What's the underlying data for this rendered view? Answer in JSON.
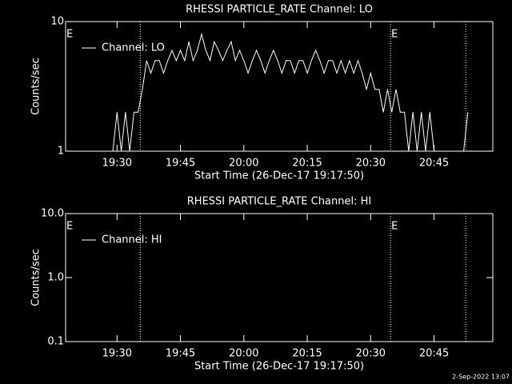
{
  "chart_data": [
    {
      "type": "line",
      "title": "RHESSI PARTICLE_RATE Channel: LO",
      "xlabel": "Start Time (26-Dec-17 19:17:50)",
      "ylabel": "Counts/sec",
      "log_y": true,
      "ylim": [
        1,
        10
      ],
      "yticks": [
        1,
        10
      ],
      "xlim": [
        1157.83,
        1258.9
      ],
      "xticks": [
        {
          "value": 1170,
          "label": "19:30"
        },
        {
          "value": 1185,
          "label": "19:45"
        },
        {
          "value": 1200,
          "label": "20:00"
        },
        {
          "value": 1215,
          "label": "20:15"
        },
        {
          "value": 1230,
          "label": "20:30"
        },
        {
          "value": 1245,
          "label": "20:45"
        }
      ],
      "legend": "upper left",
      "markers": [
        1175.5,
        1234.7,
        1252.5
      ],
      "annotations": [
        {
          "text": "E",
          "x": 1157.83
        },
        {
          "text": "E",
          "x": 1234.7
        }
      ],
      "x": [
        1169,
        1170,
        1171,
        1172,
        1173,
        1174,
        1175,
        1176,
        1177,
        1178,
        1179,
        1180,
        1181,
        1182,
        1183,
        1184,
        1185,
        1186,
        1187,
        1188,
        1189,
        1190,
        1191,
        1192,
        1193,
        1194,
        1195,
        1196,
        1197,
        1198,
        1199,
        1200,
        1201,
        1202,
        1203,
        1204,
        1205,
        1206,
        1207,
        1208,
        1209,
        1210,
        1211,
        1212,
        1213,
        1214,
        1215,
        1216,
        1217,
        1218,
        1219,
        1220,
        1221,
        1222,
        1223,
        1224,
        1225,
        1226,
        1227,
        1228,
        1229,
        1230,
        1231,
        1232,
        1233,
        1234,
        1235,
        1236,
        1237,
        1238,
        1239,
        1240,
        1241,
        1242,
        1243,
        1244,
        1245,
        1246,
        1247,
        1252,
        1253
      ],
      "series": [
        {
          "name": "Channel: LO",
          "color": "#ffffff",
          "values": [
            1,
            2,
            1,
            2,
            1,
            2,
            2,
            3,
            5,
            4,
            5,
            5,
            4,
            5,
            6,
            5,
            6,
            5,
            7,
            5,
            6,
            8,
            6,
            5,
            7,
            6,
            5,
            6,
            7,
            5,
            6,
            5,
            4,
            5,
            6,
            5,
            4,
            5,
            6,
            5,
            4,
            5,
            5,
            4,
            5,
            5,
            4,
            5,
            6,
            5,
            4,
            5,
            5,
            4,
            5,
            4,
            5,
            4,
            5,
            4,
            3,
            4,
            3,
            3,
            2,
            3,
            2,
            3,
            2,
            2,
            1,
            2,
            1,
            2,
            1,
            2,
            1,
            1,
            null,
            1,
            2
          ]
        }
      ]
    },
    {
      "type": "line",
      "title": "RHESSI PARTICLE_RATE Channel: HI",
      "xlabel": "Start Time (26-Dec-17 19:17:50)",
      "ylabel": "Counts/sec",
      "log_y": true,
      "ylim": [
        0.1,
        10
      ],
      "yticks": [
        0.1,
        {
          "value": 1,
          "label": "1.0"
        },
        {
          "value": 10,
          "label": "10.0"
        }
      ],
      "xlim": [
        1157.83,
        1258.9
      ],
      "xticks": [
        {
          "value": 1170,
          "label": "19:30"
        },
        {
          "value": 1185,
          "label": "19:45"
        },
        {
          "value": 1200,
          "label": "20:00"
        },
        {
          "value": 1215,
          "label": "20:15"
        },
        {
          "value": 1230,
          "label": "20:30"
        },
        {
          "value": 1245,
          "label": "20:45"
        }
      ],
      "legend": "upper left",
      "markers": [
        1175.5,
        1234.7,
        1252.5
      ],
      "annotations": [
        {
          "text": "E",
          "x": 1157.83
        },
        {
          "text": "E",
          "x": 1234.7
        }
      ],
      "x": [],
      "series": [
        {
          "name": "Channel: HI",
          "color": "#ffffff",
          "values": []
        }
      ]
    }
  ],
  "footer": "2-Sep-2022 13:07"
}
